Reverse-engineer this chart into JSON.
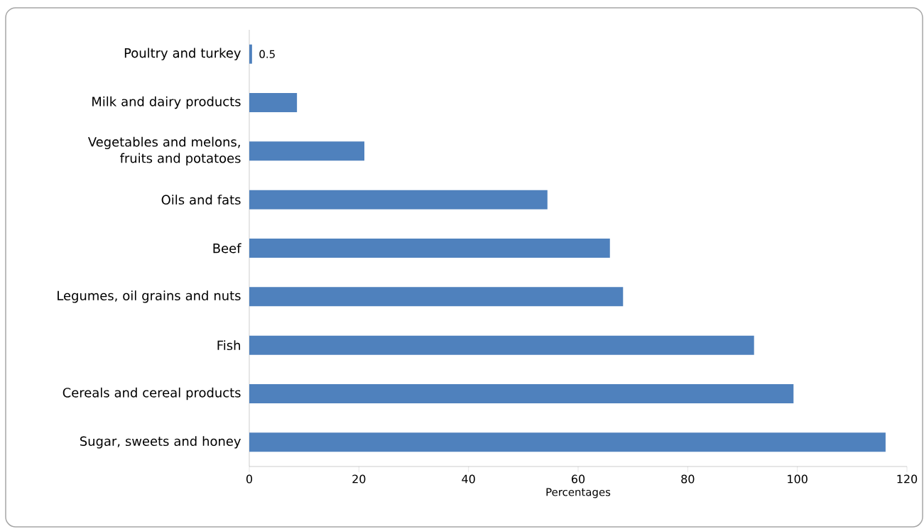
{
  "chart_data": {
    "type": "bar",
    "orientation": "horizontal",
    "xlabel": "Percentages",
    "categories": [
      "Poultry and turkey",
      "Milk and dairy products",
      "Vegetables and melons, fruits and potatoes",
      "Oils and fats",
      "Beef",
      "Legumes, oil grains and nuts",
      "Fish",
      "Cereals and cereal products",
      "Sugar, sweets and honey"
    ],
    "values": [
      0.5,
      8.7,
      21.0,
      54.4,
      65.8,
      68.2,
      92.1,
      99.3,
      116.1
    ],
    "value_labels": [
      "0.5",
      null,
      null,
      null,
      null,
      null,
      null,
      null,
      null
    ],
    "color": "#4f81bd",
    "xlim": [
      0,
      120
    ],
    "xticks": [
      0,
      20,
      40,
      60,
      80,
      100,
      120
    ],
    "grid": false
  }
}
